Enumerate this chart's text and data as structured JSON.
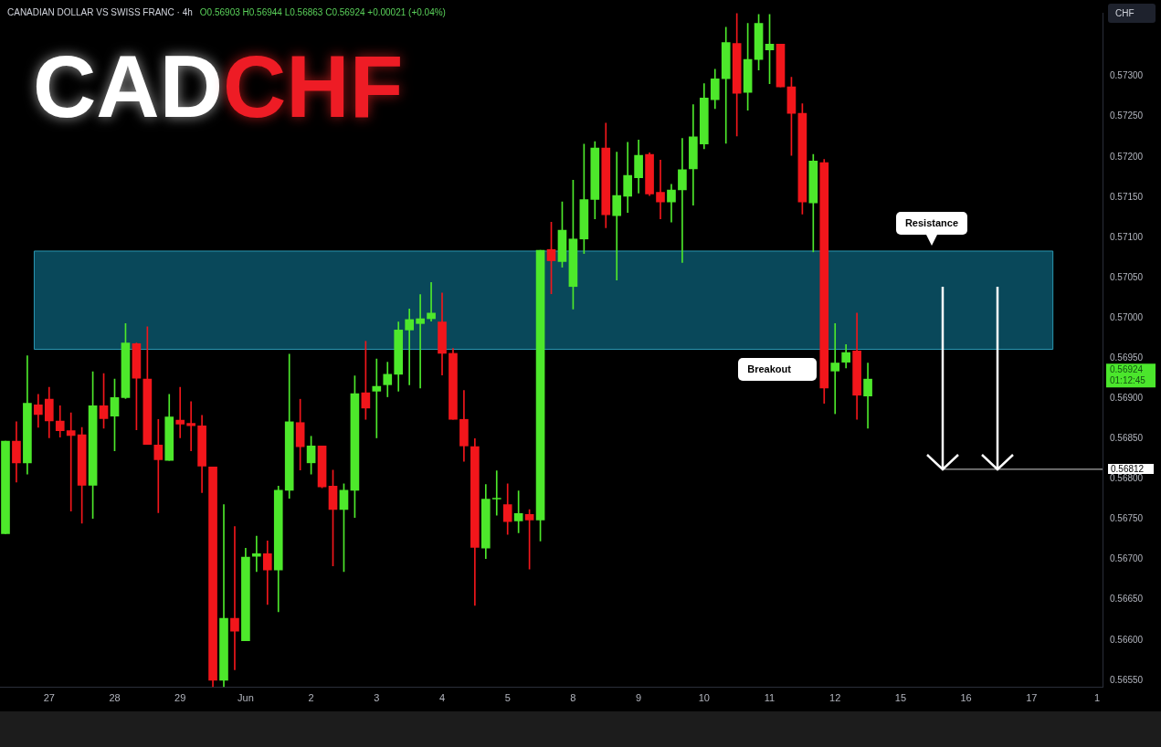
{
  "chart_data": {
    "type": "candlestick",
    "title": "CADCHF",
    "subtitle": "CANADIAN DOLLAR VS SWISS FRANC · 4h",
    "ylabel": "CHF",
    "categories": [
      null,
      null,
      null,
      null,
      "27",
      null,
      null,
      null,
      null,
      null,
      "28",
      null,
      null,
      null,
      null,
      null,
      "29",
      null,
      null,
      null,
      null,
      null,
      "Jun",
      null,
      null,
      null,
      null,
      null,
      "2",
      null,
      null,
      null,
      null,
      null,
      "3",
      null,
      null,
      null,
      null,
      null,
      "4",
      null,
      null,
      null,
      null,
      null,
      "5",
      null,
      null,
      null,
      null,
      null,
      "8",
      null,
      null,
      null,
      null,
      null,
      "9",
      null,
      null,
      null,
      null,
      null,
      "10",
      null,
      null,
      null,
      null,
      null,
      "11",
      null,
      null,
      null,
      null,
      null,
      "12",
      null,
      null,
      null,
      null,
      null,
      "15",
      null,
      null,
      null,
      null,
      null,
      "16",
      null,
      null,
      null,
      null,
      null,
      "17",
      null,
      null,
      null,
      null,
      null,
      "1"
    ],
    "ohlc": [
      [
        0.56732,
        0.56847,
        0.56732,
        0.56847
      ],
      [
        0.56847,
        0.56871,
        0.56796,
        0.5682
      ],
      [
        0.5682,
        0.56953,
        0.56806,
        0.56894
      ],
      [
        0.56892,
        0.56905,
        0.56864,
        0.5688
      ],
      [
        0.56899,
        0.56914,
        0.56851,
        0.56872
      ],
      [
        0.56872,
        0.56891,
        0.56852,
        0.5686
      ],
      [
        0.5686,
        0.56882,
        0.5676,
        0.56854
      ],
      [
        0.56855,
        0.56864,
        0.56745,
        0.56792
      ],
      [
        0.56792,
        0.56933,
        0.56751,
        0.56891
      ],
      [
        0.56891,
        0.56931,
        0.56863,
        0.56875
      ],
      [
        0.56878,
        0.56924,
        0.56835,
        0.56901
      ],
      [
        0.56901,
        0.56993,
        0.569,
        0.56969
      ],
      [
        0.56968,
        0.56969,
        0.56861,
        0.56925
      ],
      [
        0.56924,
        0.56989,
        0.56843,
        0.56843
      ],
      [
        0.56842,
        0.56874,
        0.56758,
        0.56824
      ],
      [
        0.56823,
        0.56905,
        0.56823,
        0.56877
      ],
      [
        0.56873,
        0.56914,
        0.56851,
        0.56868
      ],
      [
        0.56869,
        0.56896,
        0.56835,
        0.56866
      ],
      [
        0.56866,
        0.56879,
        0.56783,
        0.56816
      ],
      [
        0.56815,
        0.56815,
        0.56542,
        0.5655
      ],
      [
        0.5655,
        0.56768,
        0.56542,
        0.56627
      ],
      [
        0.56627,
        0.56741,
        0.56563,
        0.56611
      ],
      [
        0.56599,
        0.56714,
        0.56599,
        0.56703
      ],
      [
        0.56704,
        0.56729,
        0.56685,
        0.56707
      ],
      [
        0.56707,
        0.56723,
        0.56644,
        0.56687
      ],
      [
        0.56687,
        0.56791,
        0.56635,
        0.56786
      ],
      [
        0.56786,
        0.56955,
        0.56776,
        0.56871
      ],
      [
        0.5687,
        0.56899,
        0.56811,
        0.5684
      ],
      [
        0.5682,
        0.56853,
        0.56806,
        0.56841
      ],
      [
        0.56841,
        0.56841,
        0.56789,
        0.5679
      ],
      [
        0.56791,
        0.56811,
        0.56692,
        0.56762
      ],
      [
        0.56762,
        0.56794,
        0.56685,
        0.56786
      ],
      [
        0.56786,
        0.56928,
        0.56752,
        0.56906
      ],
      [
        0.56907,
        0.56971,
        0.56874,
        0.56888
      ],
      [
        0.56909,
        0.56949,
        0.56851,
        0.56915
      ],
      [
        0.56917,
        0.56945,
        0.56902,
        0.5693
      ],
      [
        0.5693,
        0.56995,
        0.56909,
        0.56985
      ],
      [
        0.56985,
        0.57011,
        0.56917,
        0.56998
      ],
      [
        0.56993,
        0.57029,
        0.56913,
        0.56999
      ],
      [
        0.56999,
        0.57044,
        0.56996,
        0.57006
      ],
      [
        0.56995,
        0.57031,
        0.56929,
        0.56956
      ],
      [
        0.56956,
        0.56962,
        0.56874,
        0.56874
      ],
      [
        0.56874,
        0.5691,
        0.56822,
        0.56841
      ],
      [
        0.5684,
        0.5685,
        0.56643,
        0.56715
      ],
      [
        0.56714,
        0.56793,
        0.56701,
        0.56775
      ],
      [
        0.56775,
        0.5681,
        0.56755,
        0.56776
      ],
      [
        0.56768,
        0.56794,
        0.56731,
        0.56747
      ],
      [
        0.56748,
        0.56785,
        0.56733,
        0.56757
      ],
      [
        0.56756,
        0.56762,
        0.56688,
        0.56749
      ],
      [
        0.56749,
        0.57084,
        0.56723,
        0.57084
      ],
      [
        0.57085,
        0.57119,
        0.5703,
        0.57071
      ],
      [
        0.5707,
        0.57144,
        0.57063,
        0.57109
      ],
      [
        0.57039,
        0.57171,
        0.57011,
        0.57098
      ],
      [
        0.57098,
        0.57216,
        0.5708,
        0.57147
      ],
      [
        0.57147,
        0.57219,
        0.57123,
        0.57211
      ],
      [
        0.57211,
        0.57242,
        0.57112,
        0.57128
      ],
      [
        0.57127,
        0.57206,
        0.57047,
        0.57152
      ],
      [
        0.57151,
        0.57218,
        0.57131,
        0.57177
      ],
      [
        0.57174,
        0.57221,
        0.57155,
        0.57202
      ],
      [
        0.57203,
        0.57205,
        0.57152,
        0.57154
      ],
      [
        0.57156,
        0.57196,
        0.57123,
        0.57144
      ],
      [
        0.57144,
        0.57166,
        0.57119,
        0.57159
      ],
      [
        0.57159,
        0.57223,
        0.57069,
        0.57184
      ],
      [
        0.57185,
        0.57265,
        0.5714,
        0.57225
      ],
      [
        0.57216,
        0.57291,
        0.5721,
        0.57273
      ],
      [
        0.57271,
        0.57309,
        0.5726,
        0.57297
      ],
      [
        0.57297,
        0.57361,
        0.57217,
        0.57342
      ],
      [
        0.57341,
        0.57378,
        0.57226,
        0.57279
      ],
      [
        0.5728,
        0.57366,
        0.57258,
        0.57321
      ],
      [
        0.57321,
        0.57377,
        0.57308,
        0.57366
      ],
      [
        0.57333,
        0.57377,
        0.57291,
        0.5734
      ],
      [
        0.5734,
        0.5734,
        0.57287,
        0.57287
      ],
      [
        0.57287,
        0.57299,
        0.57202,
        0.57254
      ],
      [
        0.57254,
        0.57266,
        0.57129,
        0.57144
      ],
      [
        0.57143,
        0.57203,
        0.57082,
        0.57195
      ],
      [
        0.57193,
        0.57197,
        0.56894,
        0.56913
      ],
      [
        0.56934,
        0.56993,
        0.56881,
        0.56944
      ],
      [
        0.56945,
        0.56967,
        0.56938,
        0.56957
      ],
      [
        0.56959,
        0.57006,
        0.56874,
        0.56904
      ],
      [
        0.56903,
        0.56944,
        0.56863,
        0.56924
      ],
      null,
      null,
      null,
      null,
      null,
      null,
      null,
      null,
      null,
      null,
      null,
      null,
      null,
      null,
      null,
      null,
      null,
      null,
      null,
      null,
      null
    ],
    "colors": [
      "#4de82b",
      "#f2161b",
      "#4de82b",
      "#f2161b",
      "#f2161b",
      "#f2161b",
      "#f2161b",
      "#f2161b",
      "#4de82b",
      "#f2161b",
      "#4de82b",
      "#4de82b",
      "#f2161b",
      "#f2161b",
      "#f2161b",
      "#4de82b",
      "#f2161b",
      "#f2161b",
      "#f2161b",
      "#f2161b",
      "#4de82b",
      "#f2161b",
      "#4de82b",
      "#4de82b",
      "#f2161b",
      "#4de82b",
      "#4de82b",
      "#f2161b",
      "#4de82b",
      "#f2161b",
      "#f2161b",
      "#4de82b",
      "#4de82b",
      "#f2161b",
      "#4de82b",
      "#4de82b",
      "#4de82b",
      "#4de82b",
      "#4de82b",
      "#4de82b",
      "#f2161b",
      "#f2161b",
      "#f2161b",
      "#f2161b",
      "#4de82b",
      "#4de82b",
      "#f2161b",
      "#4de82b",
      "#f2161b",
      "#4de82b",
      "#f2161b",
      "#4de82b",
      "#4de82b",
      "#4de82b",
      "#4de82b",
      "#f2161b",
      "#4de82b",
      "#4de82b",
      "#4de82b",
      "#f2161b",
      "#f2161b",
      "#4de82b",
      "#4de82b",
      "#4de82b",
      "#4de82b",
      "#4de82b",
      "#4de82b",
      "#f2161b",
      "#4de82b",
      "#4de82b",
      "#4de82b",
      "#f2161b",
      "#f2161b",
      "#f2161b",
      "#4de82b",
      "#f2161b",
      "#4de82b",
      "#4de82b",
      "#f2161b",
      "#4de82b",
      null,
      null,
      null,
      null,
      null,
      null,
      null,
      null,
      null,
      null,
      null,
      null,
      null,
      null,
      null,
      null,
      null,
      null,
      null,
      null,
      null
    ],
    "ylim": [
      0.56541,
      0.57379
    ],
    "yticks": [
      {
        "value": 0.5655,
        "label": "0.56550"
      },
      {
        "value": 0.566,
        "label": "0.56600"
      },
      {
        "value": 0.5665,
        "label": "0.56650"
      },
      {
        "value": 0.567,
        "label": "0.56700"
      },
      {
        "value": 0.5675,
        "label": "0.56750"
      },
      {
        "value": 0.568,
        "label": "0.56800"
      },
      {
        "value": 0.5685,
        "label": "0.56850"
      },
      {
        "value": 0.569,
        "label": "0.56900"
      },
      {
        "value": 0.5695,
        "label": "0.56950"
      },
      {
        "value": 0.57,
        "label": "0.57000"
      },
      {
        "value": 0.5705,
        "label": "0.57050"
      },
      {
        "value": 0.571,
        "label": "0.57100"
      },
      {
        "value": 0.5715,
        "label": "0.57150"
      },
      {
        "value": 0.572,
        "label": "0.57200"
      },
      {
        "value": 0.5725,
        "label": "0.57250"
      },
      {
        "value": 0.573,
        "label": "0.57300"
      }
    ],
    "bands": [
      {
        "axis": "y",
        "from": 0.56961,
        "to": 0.57083,
        "label": "Resistance",
        "color": "#0b5a70"
      }
    ],
    "ref_lines": [
      {
        "axis": "y",
        "value": 0.56812,
        "label": "0.56812",
        "color": "#cfcfcf"
      }
    ],
    "annotations": [
      "O0.56903 H0.56944 L0.56863 C0.56924 +0.00021 (+0.04%)",
      "0.56924\n01:12:45",
      "Breakout"
    ]
  }
}
